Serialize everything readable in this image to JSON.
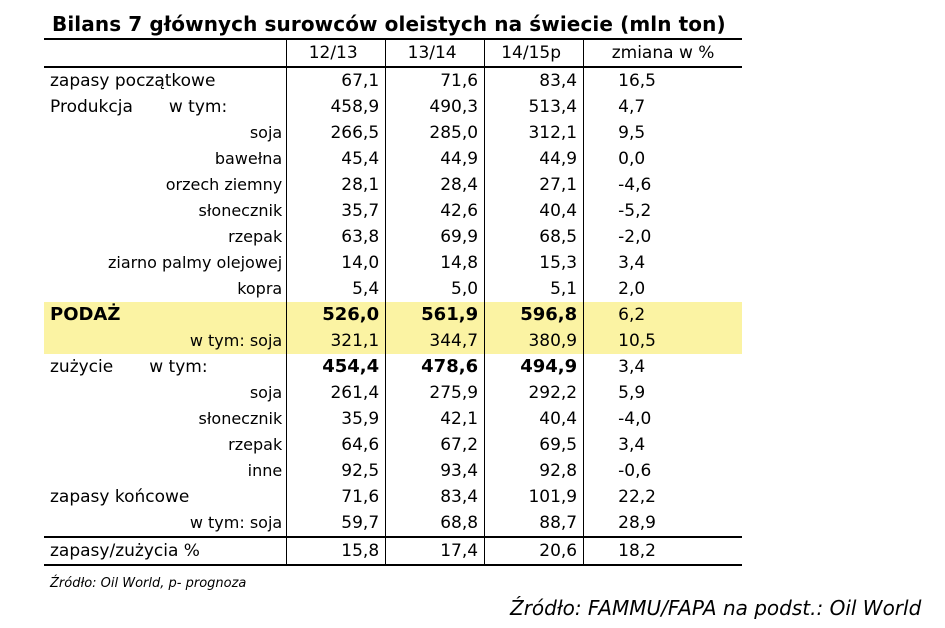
{
  "title": "Bilans 7 głównych surowców oleistych na świecie  (mln ton)",
  "headers": [
    "",
    "12/13",
    "13/14",
    "14/15p",
    "zmiana w %"
  ],
  "rows": [
    {
      "label": "zapasy początkowe",
      "extra": "",
      "style": "main",
      "v": [
        "67,1",
        "71,6",
        "83,4",
        "16,5"
      ]
    },
    {
      "label": "Produkcja",
      "extra": "w tym:",
      "style": "main",
      "v": [
        "458,9",
        "490,3",
        "513,4",
        "4,7"
      ]
    },
    {
      "label": "soja",
      "extra": "",
      "style": "sub",
      "v": [
        "266,5",
        "285,0",
        "312,1",
        "9,5"
      ]
    },
    {
      "label": "bawełna",
      "extra": "",
      "style": "sub",
      "v": [
        "45,4",
        "44,9",
        "44,9",
        "0,0"
      ]
    },
    {
      "label": "orzech ziemny",
      "extra": "",
      "style": "sub",
      "v": [
        "28,1",
        "28,4",
        "27,1",
        "-4,6"
      ]
    },
    {
      "label": "słonecznik",
      "extra": "",
      "style": "sub",
      "v": [
        "35,7",
        "42,6",
        "40,4",
        "-5,2"
      ]
    },
    {
      "label": "rzepak",
      "extra": "",
      "style": "sub",
      "v": [
        "63,8",
        "69,9",
        "68,5",
        "-2,0"
      ]
    },
    {
      "label": "ziarno palmy olejowej",
      "extra": "",
      "style": "sub",
      "v": [
        "14,0",
        "14,8",
        "15,3",
        "3,4"
      ]
    },
    {
      "label": "kopra",
      "extra": "",
      "style": "sub",
      "v": [
        "5,4",
        "5,0",
        "5,1",
        "2,0"
      ]
    },
    {
      "label": "PODAŻ",
      "extra": "",
      "style": "podaz",
      "v": [
        "526,0",
        "561,9",
        "596,8",
        "6,2"
      ]
    },
    {
      "label": "w tym: soja",
      "extra": "",
      "style": "podaz-sub",
      "v": [
        "321,1",
        "344,7",
        "380,9",
        "10,5"
      ]
    },
    {
      "label": "zużycie",
      "extra": "w tym:",
      "style": "zuzycie",
      "v": [
        "454,4",
        "478,6",
        "494,9",
        "3,4"
      ]
    },
    {
      "label": "soja",
      "extra": "",
      "style": "sub",
      "v": [
        "261,4",
        "275,9",
        "292,2",
        "5,9"
      ]
    },
    {
      "label": "słonecznik",
      "extra": "",
      "style": "sub",
      "v": [
        "35,9",
        "42,1",
        "40,4",
        "-4,0"
      ]
    },
    {
      "label": "rzepak",
      "extra": "",
      "style": "sub",
      "v": [
        "64,6",
        "67,2",
        "69,5",
        "3,4"
      ]
    },
    {
      "label": "inne",
      "extra": "",
      "style": "sub",
      "v": [
        "92,5",
        "93,4",
        "92,8",
        "-0,6"
      ]
    },
    {
      "label": "zapasy końcowe",
      "extra": "",
      "style": "main",
      "v": [
        "71,6",
        "83,4",
        "101,9",
        "22,2"
      ]
    },
    {
      "label": "w tym: soja",
      "extra": "",
      "style": "sub",
      "v": [
        "59,7",
        "68,8",
        "88,7",
        "28,9"
      ]
    },
    {
      "label": "zapasy/zużycia %",
      "extra": "",
      "style": "last",
      "v": [
        "15,8",
        "17,4",
        "20,6",
        "18,2"
      ]
    }
  ],
  "source1": "Źródło: Oil World, p- prognoza",
  "source2": "Źródło: FAMMU/FAPA na podst.: Oil World",
  "colors": {
    "highlight": "#fbf3a3"
  }
}
